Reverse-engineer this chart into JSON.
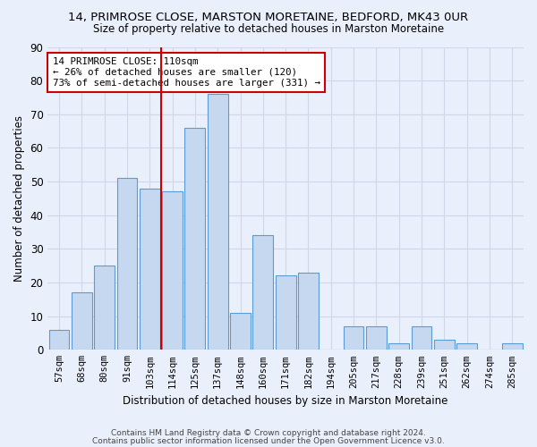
{
  "title": "14, PRIMROSE CLOSE, MARSTON MORETAINE, BEDFORD, MK43 0UR",
  "subtitle": "Size of property relative to detached houses in Marston Moretaine",
  "xlabel": "Distribution of detached houses by size in Marston Moretaine",
  "ylabel": "Number of detached properties",
  "footnote1": "Contains HM Land Registry data © Crown copyright and database right 2024.",
  "footnote2": "Contains public sector information licensed under the Open Government Licence v3.0.",
  "categories": [
    "57sqm",
    "68sqm",
    "80sqm",
    "91sqm",
    "103sqm",
    "114sqm",
    "125sqm",
    "137sqm",
    "148sqm",
    "160sqm",
    "171sqm",
    "182sqm",
    "194sqm",
    "205sqm",
    "217sqm",
    "228sqm",
    "239sqm",
    "251sqm",
    "262sqm",
    "274sqm",
    "285sqm"
  ],
  "values": [
    6,
    17,
    25,
    51,
    48,
    47,
    66,
    76,
    11,
    34,
    22,
    23,
    0,
    7,
    7,
    2,
    7,
    3,
    2,
    0,
    2
  ],
  "bar_color": "#c5d8f0",
  "bar_edge_color": "#5b9bd5",
  "grid_color": "#d0d8e8",
  "background_color": "#eaf0fb",
  "vline_x": 4.5,
  "vline_color": "#cc0000",
  "annotation_text": "14 PRIMROSE CLOSE: 110sqm\n← 26% of detached houses are smaller (120)\n73% of semi-detached houses are larger (331) →",
  "annotation_box_color": "#ffffff",
  "annotation_box_edge": "#cc0000",
  "ylim": [
    0,
    90
  ],
  "yticks": [
    0,
    10,
    20,
    30,
    40,
    50,
    60,
    70,
    80,
    90
  ],
  "title_fontsize": 9.5,
  "subtitle_fontsize": 8.5,
  "ylabel_fontsize": 8.5,
  "xlabel_fontsize": 8.5
}
